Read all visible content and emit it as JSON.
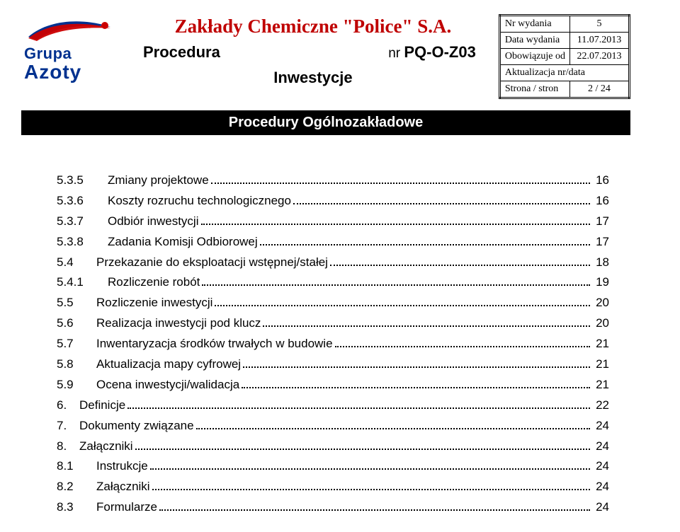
{
  "logo": {
    "line1": "Grupa",
    "line2": "Azoty",
    "brand_color": "#00318f",
    "red": "#cc0000"
  },
  "header": {
    "company": "Zakłady Chemiczne \"Police\" S.A.",
    "company_color": "#bf0000",
    "procedure_word": "Procedura",
    "procedure_code_prefix": "nr ",
    "procedure_code": "PQ-O-Z03",
    "subject": "Inwestycje"
  },
  "meta": {
    "rows": [
      {
        "label": "Nr wydania",
        "value": "5"
      },
      {
        "label": "Data wydania",
        "value": "11.07.2013"
      },
      {
        "label": "Obowiązuje od",
        "value": "22.07.2013"
      },
      {
        "label": "Aktualizacja nr/data",
        "value": ""
      },
      {
        "label": "Strona / stron",
        "value": "2 / 24"
      }
    ]
  },
  "bar_title": "Procedury Ogólnozakładowe",
  "toc": [
    {
      "lvl": 2,
      "num": "5.3.5",
      "label": "Zmiany projektowe",
      "page": "16",
      "sub": true
    },
    {
      "lvl": 2,
      "num": "5.3.6",
      "label": "Koszty rozruchu technologicznego",
      "page": "16",
      "sub": true
    },
    {
      "lvl": 2,
      "num": "5.3.7",
      "label": "Odbiór inwestycji",
      "page": "17",
      "sub": true
    },
    {
      "lvl": 2,
      "num": "5.3.8",
      "label": "Zadania Komisji Odbiorowej",
      "page": "17",
      "sub": true
    },
    {
      "lvl": 2,
      "num": "5.4",
      "label": "Przekazanie do eksploatacji wstępnej/stałej",
      "page": "18"
    },
    {
      "lvl": 2,
      "num": "5.4.1",
      "label": "Rozliczenie robót",
      "page": "19",
      "sub": true
    },
    {
      "lvl": 2,
      "num": "5.5",
      "label": "Rozliczenie inwestycji",
      "page": "20"
    },
    {
      "lvl": 2,
      "num": "5.6",
      "label": "Realizacja inwestycji pod klucz",
      "page": "20"
    },
    {
      "lvl": 2,
      "num": "5.7",
      "label": "Inwentaryzacja środków trwałych w budowie",
      "page": "21"
    },
    {
      "lvl": 2,
      "num": "5.8",
      "label": "Aktualizacja mapy cyfrowej",
      "page": "21"
    },
    {
      "lvl": 2,
      "num": "5.9",
      "label": "Ocena inwestycji/walidacja",
      "page": "21"
    },
    {
      "lvl": 1,
      "num": "6.",
      "label": "Definicje",
      "page": "22"
    },
    {
      "lvl": 1,
      "num": "7.",
      "label": "Dokumenty związane",
      "page": "24"
    },
    {
      "lvl": 1,
      "num": "8.",
      "label": "Załączniki",
      "page": "24"
    },
    {
      "lvl": 2,
      "num": "8.1",
      "label": "Instrukcje",
      "page": "24"
    },
    {
      "lvl": 2,
      "num": "8.2",
      "label": "Załączniki",
      "page": "24"
    },
    {
      "lvl": 2,
      "num": "8.3",
      "label": "Formularze",
      "page": "24"
    }
  ]
}
